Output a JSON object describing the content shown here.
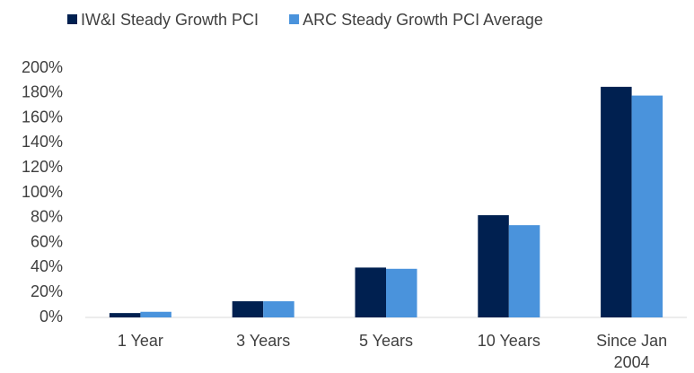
{
  "chart_data": {
    "type": "bar",
    "categories": [
      "1 Year",
      "3 Years",
      "5 Years",
      "10 Years",
      "Since Jan 2004"
    ],
    "series": [
      {
        "name": "IW&I Steady Growth PCI",
        "color": "#002050",
        "values": [
          3.5,
          13,
          40,
          82,
          185
        ]
      },
      {
        "name": "ARC Steady Growth PCI Average",
        "color": "#4a93dc",
        "values": [
          4.5,
          13,
          39,
          74,
          178
        ]
      }
    ],
    "ylim": [
      0,
      200
    ],
    "yticks": [
      {
        "value": 0,
        "label": "0%"
      },
      {
        "value": 20,
        "label": "20%"
      },
      {
        "value": 40,
        "label": "40%"
      },
      {
        "value": 60,
        "label": "60%"
      },
      {
        "value": 80,
        "label": "80%"
      },
      {
        "value": 100,
        "label": "100%"
      },
      {
        "value": 120,
        "label": "120%"
      },
      {
        "value": 140,
        "label": "140%"
      },
      {
        "value": 160,
        "label": "160%"
      },
      {
        "value": 180,
        "label": "180%"
      },
      {
        "value": 200,
        "label": "200%"
      }
    ],
    "grid": false,
    "legend": "top"
  }
}
